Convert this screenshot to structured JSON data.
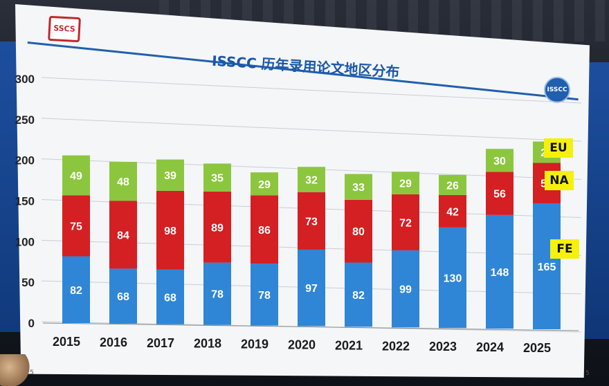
{
  "header": {
    "logo_text": "SSCS",
    "badge_text": "ISSCC",
    "corner_left": "2025",
    "corner_right": "5"
  },
  "colors": {
    "FE": "#2f86d6",
    "NA": "#d41f23",
    "EU": "#8cc63f",
    "legend_bg": "#f5f10c",
    "title": "#1b57a8"
  },
  "chart_data": {
    "type": "bar",
    "stacked": true,
    "title": "ISSCC 历年录用论文地区分布",
    "categories": [
      "2015",
      "2016",
      "2017",
      "2018",
      "2019",
      "2020",
      "2021",
      "2022",
      "2023",
      "2024",
      "2025"
    ],
    "series": [
      {
        "name": "FE",
        "values": [
          82,
          68,
          68,
          78,
          78,
          97,
          82,
          99,
          130,
          148,
          165
        ]
      },
      {
        "name": "NA",
        "values": [
          75,
          84,
          98,
          89,
          86,
          73,
          80,
          72,
          42,
          56,
          53
        ]
      },
      {
        "name": "EU",
        "values": [
          49,
          48,
          39,
          35,
          29,
          32,
          33,
          29,
          26,
          30,
          28
        ]
      }
    ],
    "ylim": [
      0,
      300
    ],
    "yticks": [
      0,
      50,
      100,
      150,
      200,
      250,
      300
    ],
    "grid": true,
    "legend": "right"
  }
}
